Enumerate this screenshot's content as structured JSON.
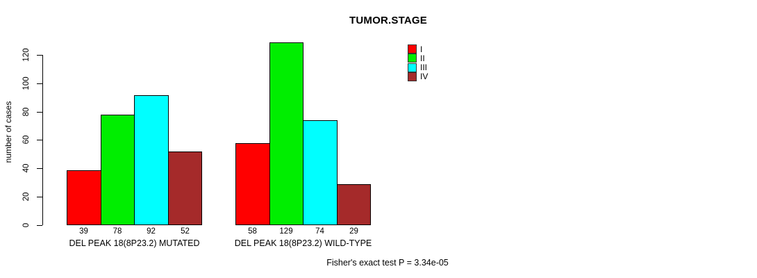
{
  "chart_data": {
    "type": "bar",
    "title": "TUMOR.STAGE",
    "xlabel": "",
    "ylabel": "number of cases",
    "ylim": [
      0,
      130
    ],
    "yticks": [
      0,
      20,
      40,
      60,
      80,
      100,
      120
    ],
    "grid": false,
    "legend_position": "top-right",
    "bar_value_labels_shown": true,
    "categories": [
      "DEL PEAK 18(8P23.2) MUTATED",
      "DEL PEAK 18(8P23.2) WILD-TYPE"
    ],
    "series": [
      {
        "name": "I",
        "color": "#ff0000",
        "values": [
          39,
          58
        ]
      },
      {
        "name": "II",
        "color": "#00ee00",
        "values": [
          78,
          129
        ]
      },
      {
        "name": "III",
        "color": "#00ffff",
        "values": [
          92,
          74
        ]
      },
      {
        "name": "IV",
        "color": "#a52a2a",
        "values": [
          52,
          29
        ]
      }
    ]
  },
  "footer": {
    "text": "Fisher's exact test P = 3.34e-05"
  }
}
